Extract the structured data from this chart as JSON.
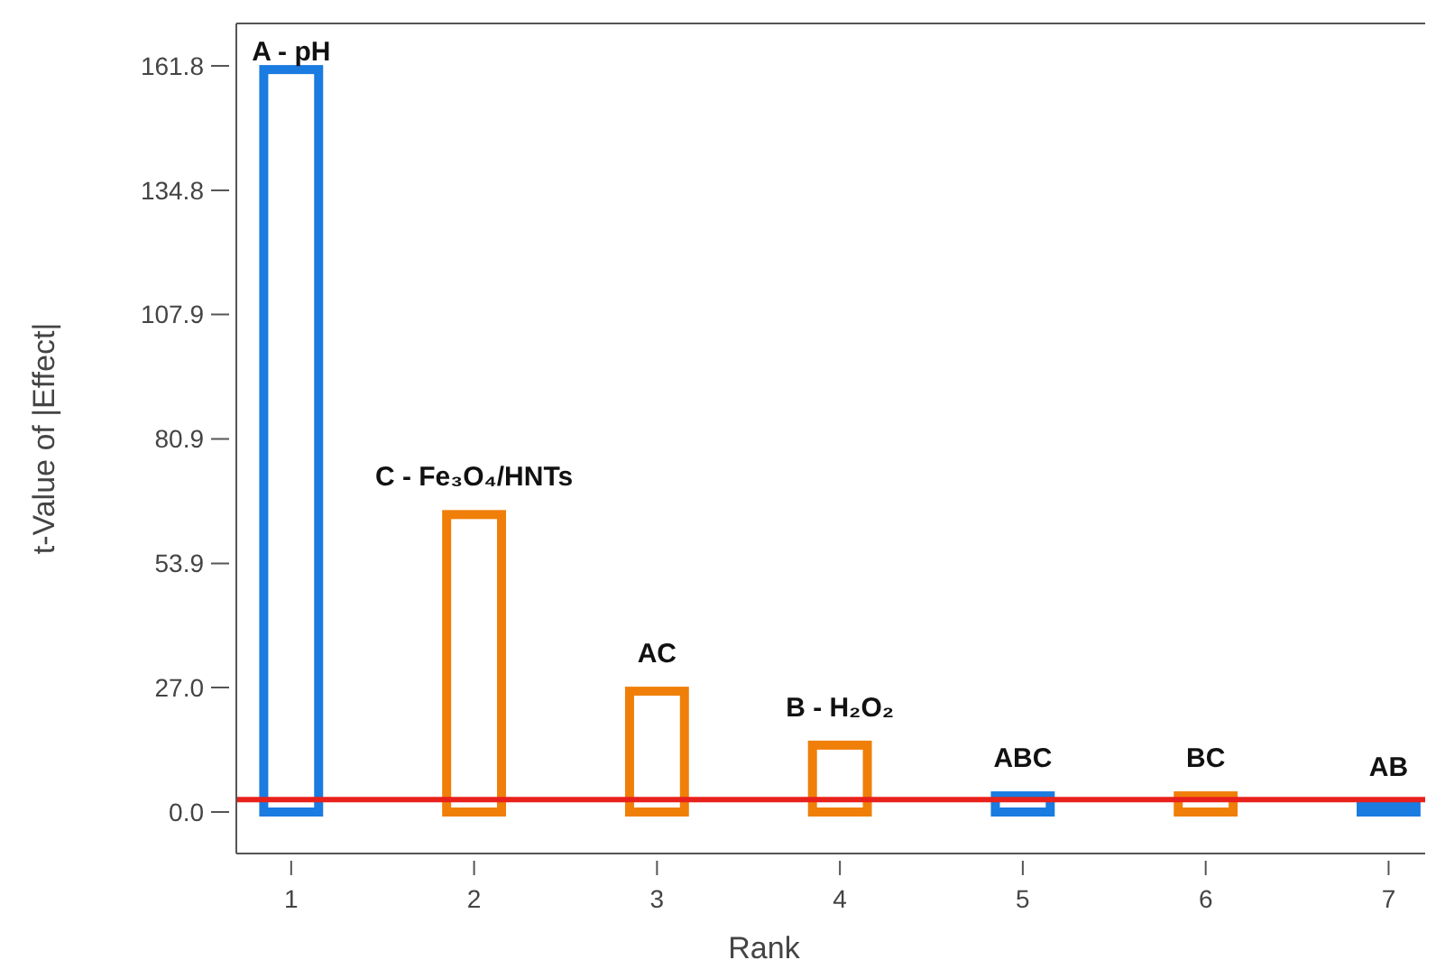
{
  "chart_data": {
    "type": "bar",
    "xlabel": "Rank",
    "ylabel": "t-Value of |Effect|",
    "x": [
      1,
      2,
      3,
      4,
      5,
      6,
      7
    ],
    "values": [
      161,
      64.5,
      26.2,
      14.5,
      3.5,
      3.5,
      1.6
    ],
    "colors": [
      "#1a7be0",
      "#f07f09",
      "#f07f09",
      "#f07f09",
      "#1a7be0",
      "#f07f09",
      "#1a7be0"
    ],
    "xlim": [
      0.7,
      7.2
    ],
    "xticks": [
      1,
      2,
      3,
      4,
      5,
      6,
      7
    ],
    "ylim": [
      -9,
      171
    ],
    "yticks": [
      {
        "value": 0,
        "label": "0.0"
      },
      {
        "value": 27,
        "label": "27.0"
      },
      53.9,
      80.9,
      107.9,
      134.8,
      161.8
    ],
    "ref_lines": [
      {
        "axis": "y",
        "value": 2.7,
        "color": "#e8211c"
      }
    ],
    "annotations": [
      {
        "text": "A - pH",
        "x": 1,
        "y": 161
      },
      {
        "text": "C - Fe₃O₄/HNTs",
        "x": 2,
        "y": 64.5
      },
      {
        "text": "AC",
        "x": 3,
        "y": 26.2
      },
      {
        "text": "B - H₂O₂",
        "x": 4,
        "y": 14.5
      },
      {
        "text": "ABC",
        "x": 5,
        "y": 3.5
      },
      {
        "text": "BC",
        "x": 6,
        "y": 3.5
      },
      {
        "text": "AB",
        "x": 7,
        "y": 1.6
      }
    ],
    "grid": false
  }
}
